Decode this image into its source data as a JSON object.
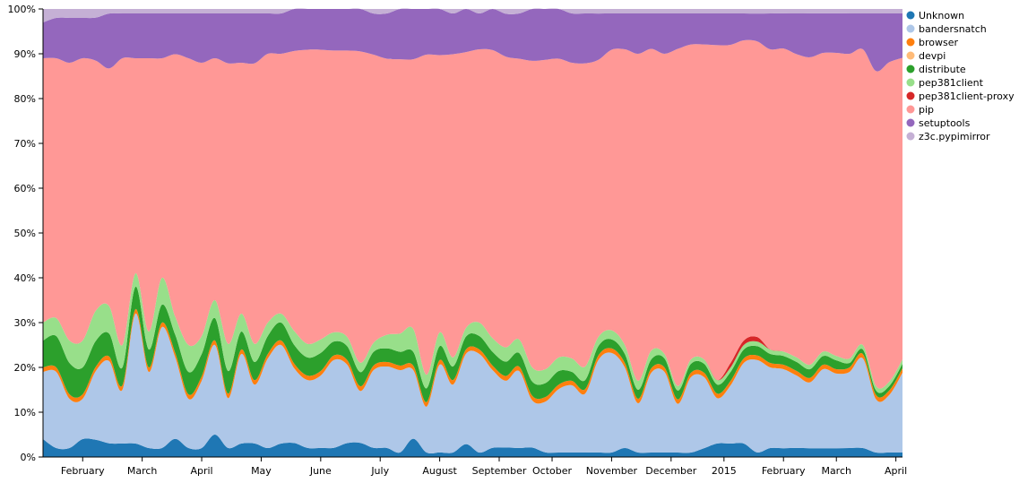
{
  "chart_data": {
    "type": "area",
    "stacked": true,
    "normalized": true,
    "x": [
      1,
      2,
      3,
      4,
      5,
      6,
      7,
      8,
      9,
      10,
      11,
      12,
      13,
      14,
      15,
      16,
      17,
      18,
      19,
      20,
      21,
      22,
      23,
      24,
      25,
      26,
      27,
      28,
      29,
      30,
      31,
      32,
      33,
      34,
      35,
      36,
      37,
      38,
      39,
      40,
      41,
      42,
      43,
      44,
      45,
      46,
      47,
      48,
      49,
      50,
      51,
      52,
      53,
      54,
      55,
      56,
      57,
      58,
      59,
      60,
      61,
      62,
      63,
      64,
      65,
      66
    ],
    "x_ticks": [
      {
        "x": 4,
        "label": "February"
      },
      {
        "x": 8.5,
        "label": "March"
      },
      {
        "x": 13,
        "label": "April"
      },
      {
        "x": 17.5,
        "label": "May"
      },
      {
        "x": 22,
        "label": "June"
      },
      {
        "x": 26.5,
        "label": "July"
      },
      {
        "x": 31,
        "label": "August"
      },
      {
        "x": 35.5,
        "label": "September"
      },
      {
        "x": 39.5,
        "label": "October"
      },
      {
        "x": 44,
        "label": "November"
      },
      {
        "x": 48.5,
        "label": "December"
      },
      {
        "x": 52.5,
        "label": "2015"
      },
      {
        "x": 57,
        "label": "February"
      },
      {
        "x": 61,
        "label": "March"
      },
      {
        "x": 65.5,
        "label": "April"
      }
    ],
    "y_ticks": [
      "0%",
      "10%",
      "20%",
      "30%",
      "40%",
      "50%",
      "60%",
      "70%",
      "80%",
      "90%",
      "100%"
    ],
    "ylim": [
      0,
      100
    ],
    "legend_position": "right",
    "series": [
      {
        "name": "Unknown",
        "color": "#1f77b4",
        "values": [
          4,
          2,
          2,
          4,
          4,
          3,
          3,
          3,
          2,
          2,
          4,
          2,
          2,
          5,
          2,
          3,
          3,
          2,
          3,
          3,
          2,
          2,
          2,
          3,
          3,
          2,
          2,
          1,
          4,
          1,
          1,
          1,
          3,
          1,
          2,
          2,
          2,
          2,
          1,
          1,
          1,
          1,
          1,
          1,
          2,
          1,
          1,
          1,
          1,
          1,
          2,
          3,
          3,
          3,
          1,
          2,
          2,
          2,
          2,
          2,
          2,
          2,
          2,
          1,
          1,
          1
        ]
      },
      {
        "name": "bandersnatch",
        "color": "#aec7e8",
        "values": [
          15,
          17,
          11,
          9,
          16,
          18,
          12,
          29,
          17,
          27,
          18,
          11,
          15,
          20,
          11,
          20,
          13,
          20,
          22,
          16,
          15,
          16,
          19,
          17,
          11,
          17,
          18,
          18,
          15,
          10,
          19,
          15,
          21,
          22,
          17,
          14,
          17,
          10,
          11,
          14,
          15,
          13,
          20,
          22,
          18,
          11,
          18,
          18,
          11,
          17,
          16,
          10,
          13,
          18,
          20,
          18,
          18,
          16,
          15,
          18,
          17,
          17,
          20,
          12,
          13,
          18
        ]
      },
      {
        "name": "browser",
        "color": "#ff7f0e",
        "values": [
          1,
          1,
          1,
          1,
          1,
          1,
          1,
          1,
          1,
          1,
          1,
          1,
          1,
          1,
          1,
          1,
          1,
          1,
          1,
          1,
          1,
          1,
          1,
          1,
          1,
          1,
          1,
          1,
          1,
          1,
          1,
          1,
          1,
          1,
          1,
          1,
          1,
          1,
          1,
          1,
          1,
          1,
          1,
          1,
          1,
          1,
          1,
          1,
          1,
          1,
          1,
          1,
          1,
          1,
          1,
          1,
          1,
          1,
          1,
          1,
          1,
          1,
          1,
          1,
          1,
          1
        ]
      },
      {
        "name": "devpi",
        "color": "#ffbb78",
        "values": [
          0,
          0,
          0,
          0,
          0,
          0,
          0,
          0,
          0,
          0,
          0,
          0,
          0,
          0,
          0,
          0,
          0,
          0,
          0,
          0,
          0,
          0,
          0,
          0,
          0,
          0,
          0,
          0,
          0,
          0,
          0,
          0,
          0,
          0,
          0,
          0,
          0,
          0,
          0,
          0,
          0,
          0,
          0,
          0,
          0,
          0,
          0,
          0,
          0,
          0,
          0,
          0,
          0,
          0,
          0,
          0,
          0,
          0,
          0,
          0,
          0,
          0,
          0,
          0,
          0,
          0
        ]
      },
      {
        "name": "distribute",
        "color": "#2ca02c",
        "values": [
          6,
          7,
          7,
          6,
          6,
          5,
          4,
          5,
          4,
          4,
          4,
          5,
          5,
          5,
          5,
          4,
          4,
          4,
          4,
          4,
          4,
          4,
          3,
          3,
          3,
          3,
          3,
          3,
          3,
          3,
          3,
          3,
          3,
          3,
          3,
          3,
          3,
          3,
          3,
          3,
          2,
          2,
          2,
          2,
          2,
          2,
          2,
          2,
          2,
          2,
          2,
          2,
          2,
          2,
          2,
          2,
          2,
          2,
          2,
          2,
          2,
          1,
          1,
          1,
          1,
          1
        ]
      },
      {
        "name": "pep381client",
        "color": "#98df8a",
        "values": [
          4,
          4,
          5,
          6,
          7,
          6,
          5,
          3,
          4,
          6,
          4,
          6,
          4,
          4,
          6,
          4,
          4,
          3,
          2,
          3,
          3,
          3,
          2,
          2,
          2,
          2,
          3,
          4,
          5,
          3,
          3,
          2,
          2,
          3,
          3,
          3,
          3,
          3,
          3,
          3,
          3,
          3,
          2,
          2,
          2,
          2,
          2,
          1,
          1,
          1,
          1,
          1,
          1,
          1,
          1,
          1,
          1,
          1,
          1,
          1,
          1,
          1,
          1,
          1,
          1,
          1
        ]
      },
      {
        "name": "pep381client-proxy",
        "color": "#d62728",
        "values": [
          0,
          0,
          0,
          0,
          0,
          0,
          0,
          0,
          0,
          0,
          0,
          0,
          0,
          0,
          0,
          0,
          0,
          0,
          0,
          0,
          0,
          0,
          0,
          0,
          0,
          0,
          0,
          0,
          0,
          0,
          0,
          0,
          0,
          0,
          0,
          0,
          0,
          0,
          0,
          0,
          0,
          0,
          0,
          0,
          0,
          0,
          0,
          0,
          0,
          0,
          0,
          0,
          1,
          1,
          1,
          0,
          0,
          0,
          0,
          0,
          0,
          0,
          0,
          0,
          0,
          0
        ]
      },
      {
        "name": "pip",
        "color": "#ff9896",
        "values": [
          59,
          58,
          62,
          63,
          58,
          52,
          64,
          48,
          61,
          49,
          58,
          64,
          61,
          54,
          62,
          56,
          62,
          60,
          58,
          60,
          65,
          64,
          61,
          62,
          66,
          63,
          61,
          60,
          59,
          70,
          60,
          67,
          64,
          61,
          63,
          61,
          62,
          65,
          67,
          66,
          66,
          67,
          60,
          62,
          66,
          73,
          68,
          67,
          76,
          71,
          71,
          74,
          71,
          67,
          64,
          67,
          69,
          67,
          70,
          68,
          69,
          68,
          66,
          71,
          72,
          68
        ]
      },
      {
        "name": "setuptools",
        "color": "#9467bd",
        "values": [
          8,
          9,
          10,
          9,
          10,
          12,
          10,
          10,
          10,
          10,
          9,
          10,
          11,
          10,
          11,
          11,
          11,
          9,
          9,
          9,
          9,
          9,
          9,
          9,
          9,
          9,
          10,
          11,
          11,
          10,
          10,
          9,
          10,
          8,
          9,
          9,
          10,
          11,
          11,
          11,
          11,
          11,
          10,
          8,
          8,
          9,
          8,
          9,
          8,
          7,
          7,
          7,
          7,
          6,
          6,
          8,
          8,
          9,
          10,
          9,
          9,
          9,
          8,
          13,
          11,
          10
        ]
      },
      {
        "name": "z3c.pypimirror",
        "color": "#c5b0d5",
        "values": [
          3,
          2,
          2,
          2,
          2,
          1,
          1,
          1,
          1,
          1,
          1,
          1,
          1,
          1,
          1,
          1,
          1,
          1,
          1,
          0,
          0,
          0,
          0,
          0,
          0,
          1,
          1,
          0,
          0,
          0,
          0,
          1,
          0,
          1,
          0,
          1,
          1,
          0,
          0,
          0,
          1,
          1,
          1,
          1,
          1,
          1,
          1,
          1,
          1,
          1,
          1,
          1,
          1,
          1,
          1,
          1,
          1,
          1,
          1,
          1,
          1,
          1,
          1,
          1,
          1,
          1
        ]
      }
    ]
  }
}
